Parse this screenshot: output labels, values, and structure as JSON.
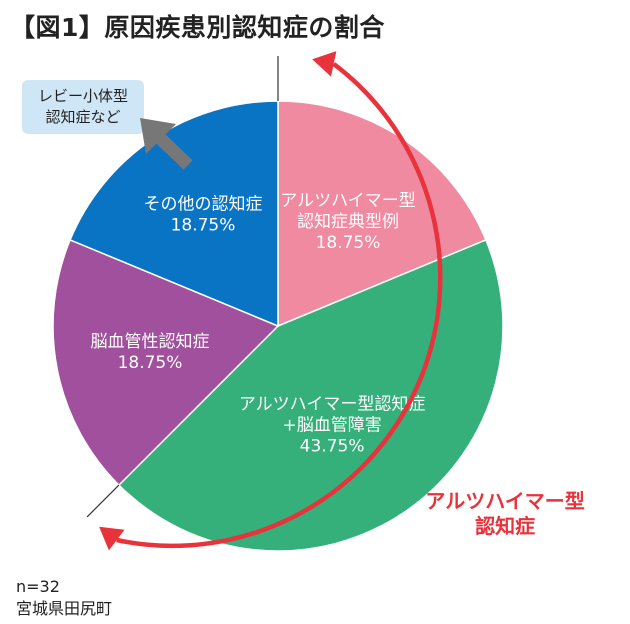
{
  "title": "【図1】原因疾患別認知症の割合",
  "chart_data": {
    "type": "pie",
    "title": "【図1】原因疾患別認知症の割合",
    "n_label": "n=32",
    "location": "宮城県田尻町",
    "slices": [
      {
        "name": "アルツハイマー型認知症典型例",
        "lines": [
          "アルツハイマー型",
          "認知症典型例",
          "18.75%"
        ],
        "value": 18.75,
        "color": "#ef8aa0"
      },
      {
        "name": "アルツハイマー型認知症+脳血管障害",
        "lines": [
          "アルツハイマー型認知症",
          "+脳血管障害",
          "43.75%"
        ],
        "value": 43.75,
        "color": "#36b07a"
      },
      {
        "name": "脳血管性認知症",
        "lines": [
          "脳血管性認知症",
          "18.75%"
        ],
        "value": 18.75,
        "color": "#a0509c"
      },
      {
        "name": "その他の認知症",
        "lines": [
          "その他の認知症",
          "18.75%"
        ],
        "value": 18.75,
        "color": "#0a74c4"
      }
    ],
    "bracket_label": [
      "アルツハイマー型",
      "認知症"
    ],
    "bracket_color": "#e8323c",
    "callout": {
      "lines": [
        "レビー小体型",
        "認知症など"
      ],
      "bg": "#cfe6f7",
      "arrow_color": "#777777"
    }
  }
}
